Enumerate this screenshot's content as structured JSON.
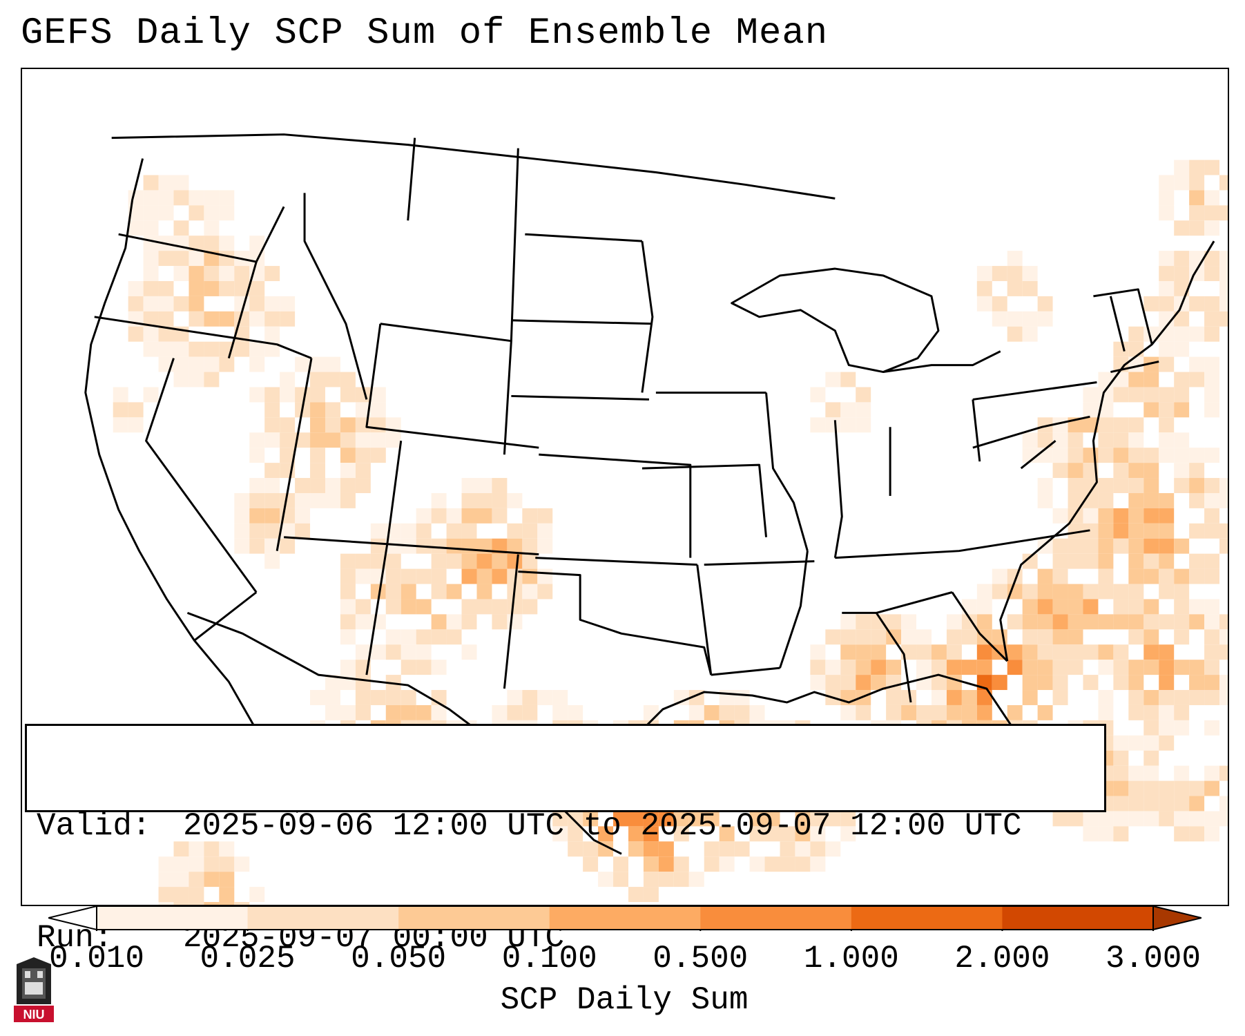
{
  "title": "GEFS Daily SCP Sum of Ensemble Mean",
  "info_box": {
    "valid_label": "Valid:",
    "valid_value": "2025-09-06 12:00 UTC to 2025-09-07 12:00 UTC",
    "run_label": "Run:",
    "run_value": "2025-09-07 00:00 UTC"
  },
  "colorbar": {
    "label": "SCP Daily Sum",
    "ticks": [
      "0.010",
      "0.025",
      "0.050",
      "0.100",
      "0.500",
      "1.000",
      "2.000",
      "3.000"
    ],
    "colors": [
      "#fff2e6",
      "#fde0c2",
      "#fdca95",
      "#fdab63",
      "#f98d3c",
      "#ec6a14",
      "#d24801"
    ],
    "under_color": "#ffffff",
    "over_color": "#a83800"
  },
  "logo": {
    "text": "NIU",
    "color": "#c8102e"
  },
  "map": {
    "projection": "lambert-conformal",
    "region": "CONUS",
    "borders": [
      "states",
      "countries",
      "coastlines"
    ]
  }
}
